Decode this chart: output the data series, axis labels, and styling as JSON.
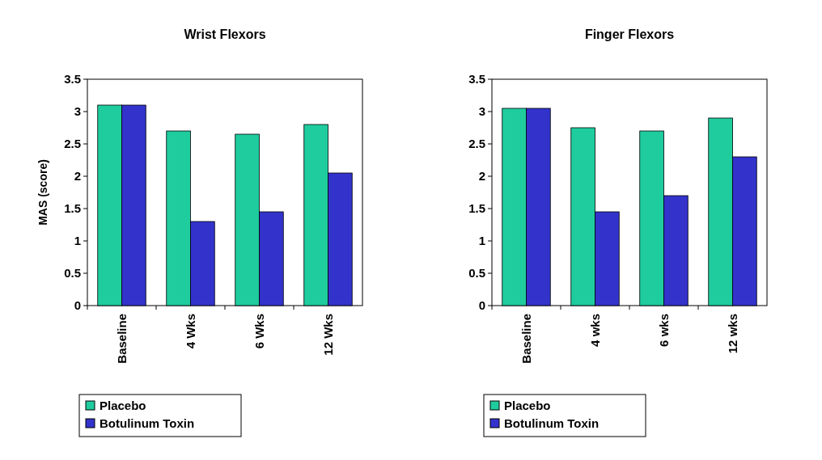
{
  "chart_data": [
    {
      "type": "bar",
      "title": "Wrist Flexors",
      "ylabel": "MAS (score)",
      "categories": [
        "Baseline",
        "4 Wks",
        "6 Wks",
        "12 Wks"
      ],
      "series": [
        {
          "name": "Placebo",
          "color": "#1fcc9e",
          "values": [
            3.1,
            2.7,
            2.65,
            2.8
          ]
        },
        {
          "name": "Botulinum Toxin",
          "color": "#3333cc",
          "values": [
            3.1,
            1.3,
            1.45,
            2.05
          ]
        }
      ],
      "ylim": [
        0,
        3.5
      ],
      "yticks": [
        0,
        0.5,
        1,
        1.5,
        2,
        2.5,
        3,
        3.5
      ],
      "legend": "bottom",
      "grid": false
    },
    {
      "type": "bar",
      "title": "Finger Flexors",
      "categories": [
        "Baseline",
        "4 wks",
        "6 wks",
        "12 wks"
      ],
      "series": [
        {
          "name": "Placebo",
          "color": "#1fcc9e",
          "values": [
            3.05,
            2.75,
            2.7,
            2.9
          ]
        },
        {
          "name": "Botulinum Toxin",
          "color": "#3333cc",
          "values": [
            3.05,
            1.45,
            1.7,
            2.3
          ]
        }
      ],
      "ylim": [
        0,
        3.5
      ],
      "yticks": [
        0,
        0.5,
        1,
        1.5,
        2,
        2.5,
        3,
        3.5
      ],
      "legend": "bottom",
      "grid": false
    }
  ]
}
